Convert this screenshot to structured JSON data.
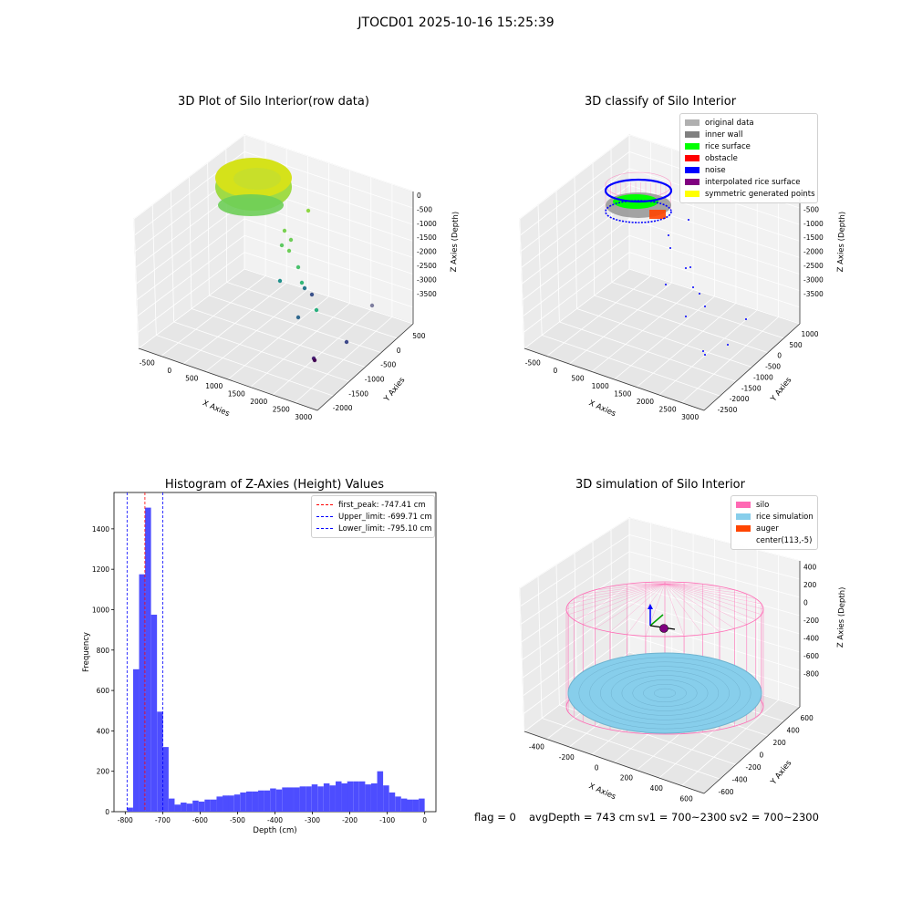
{
  "suptitle": "JTOCD01 2025-10-16 15:25:39",
  "footer": {
    "flag": "flag = 0",
    "avg_depth": "avgDepth = 743 cm",
    "sv1": "sv1 = 700~2300",
    "sv2": "sv2 = 700~2300"
  },
  "colors": {
    "histogram_bar": "#4d4dff",
    "silo_wire": "#ff69b4",
    "rice_surface": "#87ceeb",
    "noise": "#0000ff",
    "rice": "#00ff00",
    "obstacle": "#ff0000",
    "inner_wall": "#808080",
    "auger": "#ff4500"
  },
  "chart_data": [
    {
      "type": "scatter",
      "subtype": "3d",
      "title": "3D Plot of Silo Interior(row data)",
      "xlabel": "X Axies",
      "ylabel": "Y Axies",
      "zlabel": "Z Axies (Depth)",
      "x_ticks": [
        "-500",
        "0",
        "500",
        "1000",
        "1500",
        "2000",
        "2500",
        "3000"
      ],
      "y_ticks": [
        "-2000",
        "-1500",
        "-1000",
        "-500",
        "0",
        "500"
      ],
      "z_ticks": [
        "0",
        "-500",
        "-1000",
        "-1500",
        "-2000",
        "-2500",
        "-3000",
        "-3500"
      ],
      "colormap": "viridis",
      "note_points": "dense ring of points near the top of the silo (z about -700), scattered points descending towards -3500"
    },
    {
      "type": "scatter",
      "subtype": "3d",
      "title": "3D classify of Silo Interior",
      "xlabel": "X Axies",
      "ylabel": "Y Axies",
      "zlabel": "Z Axies (Depth)",
      "x_ticks": [
        "-500",
        "0",
        "500",
        "1000",
        "1500",
        "2000",
        "2500",
        "3000"
      ],
      "y_ticks": [
        "-2500",
        "-2000",
        "-1500",
        "-1000",
        "-500",
        "0",
        "500",
        "1000"
      ],
      "z_ticks": [
        "0",
        "-500",
        "-1000",
        "-1500",
        "-2000",
        "-2500",
        "-3000",
        "-3500"
      ],
      "legend_position": "top-right",
      "legend": [
        {
          "label": "original data",
          "color": "#b0b0b0"
        },
        {
          "label": "inner wall",
          "color": "#808080"
        },
        {
          "label": "rice surface",
          "color": "#00ff00"
        },
        {
          "label": "obstacle",
          "color": "#ff0000"
        },
        {
          "label": "noise",
          "color": "#0000ff"
        },
        {
          "label": "interpolated rice surface",
          "color": "#800080"
        },
        {
          "label": "symmetric generated points",
          "color": "#ffff00"
        }
      ]
    },
    {
      "type": "bar",
      "subtype": "histogram",
      "title": "Histogram of Z-Axies (Height) Values",
      "xlabel": "Depth (cm)",
      "ylabel": "Frequency",
      "xlim": [
        -830,
        30
      ],
      "ylim": [
        0,
        1580
      ],
      "x_ticks": [
        -800,
        -700,
        -600,
        -500,
        -400,
        -300,
        -200,
        -100,
        0
      ],
      "y_ticks": [
        0,
        200,
        400,
        600,
        800,
        1000,
        1200,
        1400
      ],
      "bin_width": 15.9,
      "bins": [
        {
          "x0": -795,
          "v": 20
        },
        {
          "x0": -779,
          "v": 705
        },
        {
          "x0": -763,
          "v": 1175
        },
        {
          "x0": -747,
          "v": 1505
        },
        {
          "x0": -731,
          "v": 975
        },
        {
          "x0": -715,
          "v": 495
        },
        {
          "x0": -700,
          "v": 320
        },
        {
          "x0": -684,
          "v": 65
        },
        {
          "x0": -668,
          "v": 35
        },
        {
          "x0": -652,
          "v": 45
        },
        {
          "x0": -636,
          "v": 40
        },
        {
          "x0": -620,
          "v": 55
        },
        {
          "x0": -604,
          "v": 50
        },
        {
          "x0": -588,
          "v": 60
        },
        {
          "x0": -572,
          "v": 60
        },
        {
          "x0": -556,
          "v": 75
        },
        {
          "x0": -540,
          "v": 80
        },
        {
          "x0": -525,
          "v": 80
        },
        {
          "x0": -509,
          "v": 85
        },
        {
          "x0": -493,
          "v": 95
        },
        {
          "x0": -477,
          "v": 100
        },
        {
          "x0": -461,
          "v": 100
        },
        {
          "x0": -445,
          "v": 105
        },
        {
          "x0": -429,
          "v": 105
        },
        {
          "x0": -413,
          "v": 115
        },
        {
          "x0": -397,
          "v": 110
        },
        {
          "x0": -381,
          "v": 120
        },
        {
          "x0": -366,
          "v": 120
        },
        {
          "x0": -350,
          "v": 120
        },
        {
          "x0": -334,
          "v": 125
        },
        {
          "x0": -318,
          "v": 125
        },
        {
          "x0": -302,
          "v": 135
        },
        {
          "x0": -286,
          "v": 125
        },
        {
          "x0": -270,
          "v": 140
        },
        {
          "x0": -254,
          "v": 130
        },
        {
          "x0": -238,
          "v": 150
        },
        {
          "x0": -222,
          "v": 140
        },
        {
          "x0": -207,
          "v": 150
        },
        {
          "x0": -191,
          "v": 150
        },
        {
          "x0": -175,
          "v": 150
        },
        {
          "x0": -159,
          "v": 135
        },
        {
          "x0": -143,
          "v": 140
        },
        {
          "x0": -127,
          "v": 200
        },
        {
          "x0": -111,
          "v": 130
        },
        {
          "x0": -95,
          "v": 95
        },
        {
          "x0": -79,
          "v": 75
        },
        {
          "x0": -63,
          "v": 65
        },
        {
          "x0": -48,
          "v": 60
        },
        {
          "x0": -32,
          "v": 60
        },
        {
          "x0": -16,
          "v": 65
        }
      ],
      "legend_position": "top-right",
      "vlines": [
        {
          "label": "first_peak: -747.41 cm",
          "x": -747.41,
          "color": "#ff0000"
        },
        {
          "label": "Upper_limit: -699.71 cm",
          "x": -699.71,
          "color": "#0000ff"
        },
        {
          "label": "Lower_limit: -795.10 cm",
          "x": -795.1,
          "color": "#0000ff"
        }
      ]
    },
    {
      "type": "scatter",
      "subtype": "3d",
      "title": "3D simulation of Silo Interior",
      "xlabel": "X Axies",
      "ylabel": "Y Axies",
      "zlabel": "Z Axies (Depth)",
      "x_ticks": [
        "-400",
        "-200",
        "0",
        "200",
        "400",
        "600"
      ],
      "y_ticks": [
        "-600",
        "-400",
        "-200",
        "0",
        "200",
        "400",
        "600"
      ],
      "z_ticks": [
        "400",
        "200",
        "0",
        "-200",
        "-400",
        "-600",
        "-800"
      ],
      "legend_position": "top-right",
      "legend": [
        {
          "label": "silo",
          "color": "#ff69b4"
        },
        {
          "label": "rice simulation",
          "color": "#87ceeb"
        },
        {
          "label": "auger",
          "color": "#ff4500"
        },
        {
          "label": "center(113,-5)",
          "color": ""
        }
      ]
    }
  ]
}
